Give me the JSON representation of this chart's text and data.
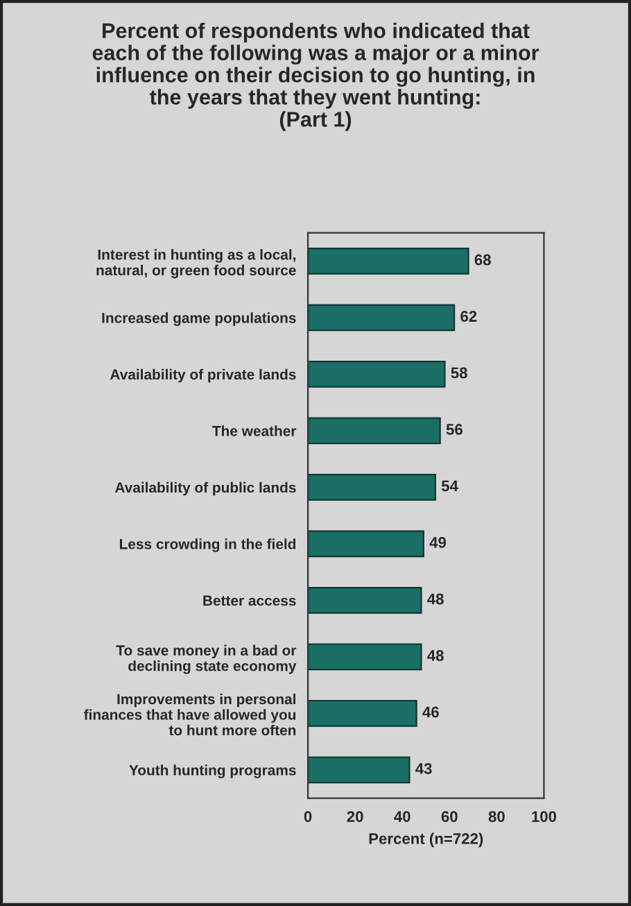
{
  "chart_data": {
    "type": "bar",
    "orientation": "horizontal",
    "title": "Percent of respondents who indicated that\neach of the following was a major or a minor\ninfluence on their decision to go hunting, in\nthe years that they went hunting:\n(Part 1)",
    "xlabel": "Percent (n=722)",
    "categories": [
      "Interest in hunting as a local,\nnatural, or green food source",
      "Increased game populations",
      "Availability of private lands",
      "The weather",
      "Availability of public lands",
      "Less crowding in the field",
      "Better access",
      "To save money in a bad or\ndeclining state economy",
      "Improvements in personal\nfinances that have allowed you\nto hunt more often",
      "Youth hunting programs"
    ],
    "values": [
      68,
      62,
      58,
      56,
      54,
      49,
      48,
      48,
      46,
      43
    ],
    "color": "#1b6e66",
    "xlim": [
      0,
      100
    ],
    "xticks": [
      0,
      20,
      40,
      60,
      80,
      100
    ],
    "data_labels": true,
    "grid": false,
    "legend": false
  }
}
